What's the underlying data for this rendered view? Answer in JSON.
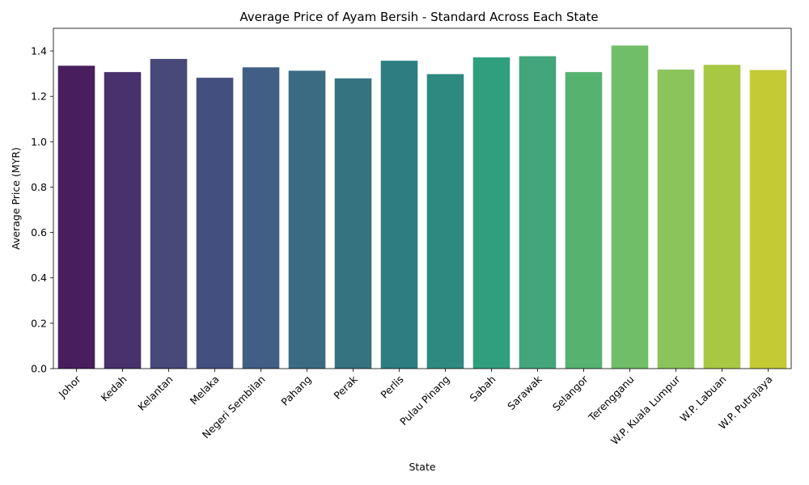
{
  "chart_data": {
    "type": "bar",
    "title": "Average Price of Ayam Bersih - Standard Across Each State",
    "xlabel": "State",
    "ylabel": "Average Price (MYR)",
    "ylim": [
      0,
      1.5
    ],
    "yticks": [
      "0.0",
      "0.2",
      "0.4",
      "0.6",
      "0.8",
      "1.0",
      "1.2",
      "1.4"
    ],
    "grid": false,
    "legend": "none",
    "categories": [
      "Johor",
      "Kedah",
      "Kelantan",
      "Melaka",
      "Negeri Sembilan",
      "Pahang",
      "Perak",
      "Perlis",
      "Pulau Pinang",
      "Sabah",
      "Sarawak",
      "Selangor",
      "Terengganu",
      "W.P. Kuala Lumpur",
      "W.P. Labuan",
      "W.P. Putrajaya"
    ],
    "values": [
      1.335,
      1.307,
      1.365,
      1.282,
      1.328,
      1.313,
      1.279,
      1.357,
      1.298,
      1.372,
      1.377,
      1.307,
      1.424,
      1.318,
      1.339,
      1.316
    ],
    "colors": [
      "#481f5c",
      "#48316c",
      "#484879",
      "#434f7f",
      "#415f85",
      "#3a6b82",
      "#357380",
      "#2e7e81",
      "#2e8a80",
      "#309f7e",
      "#43a57c",
      "#55b26f",
      "#70be68",
      "#8bc45b",
      "#a8c844",
      "#c4ca34"
    ]
  }
}
